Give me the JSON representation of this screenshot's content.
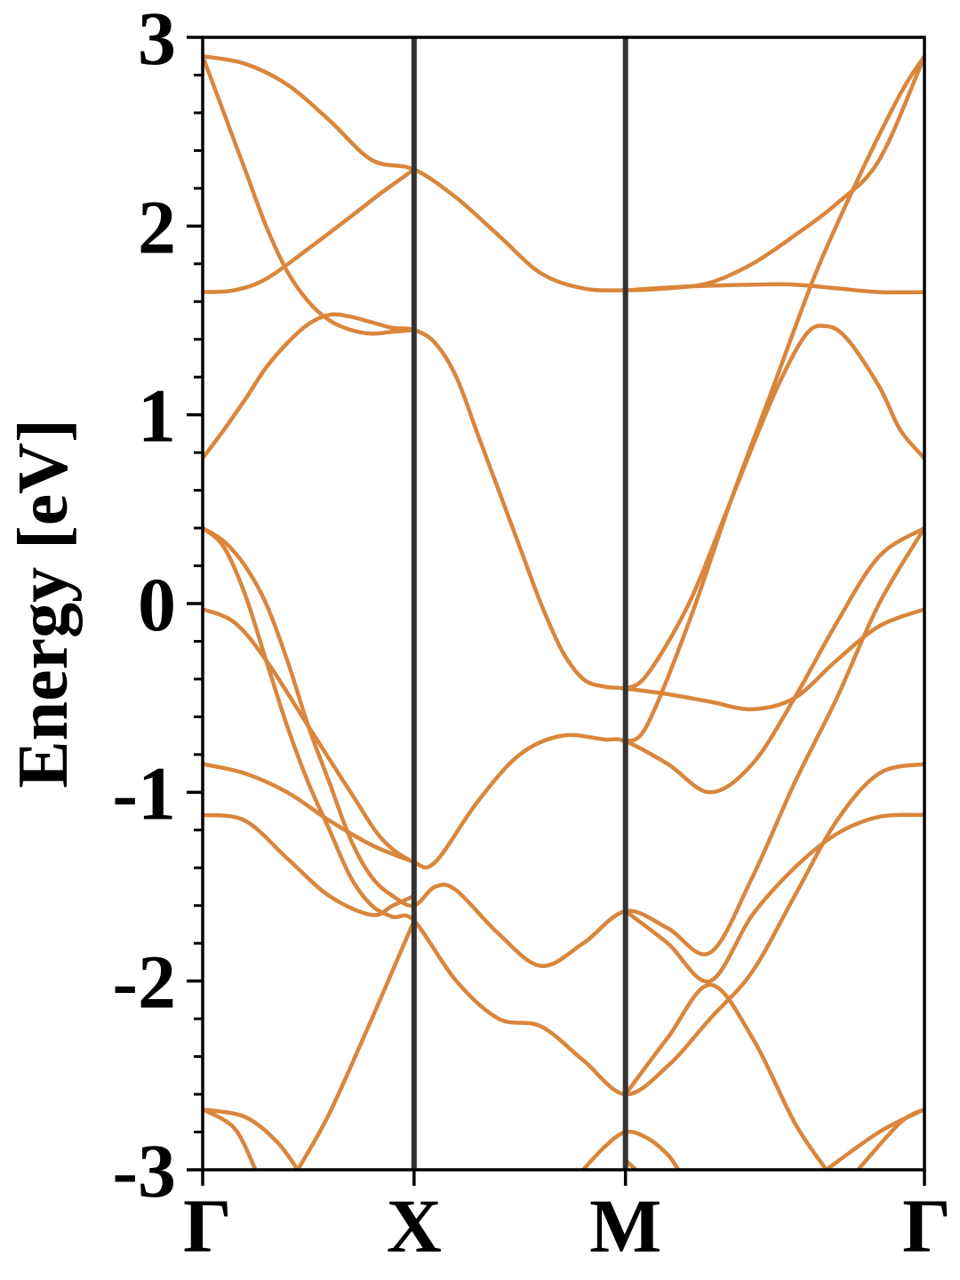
{
  "chart_data": {
    "type": "line",
    "title": "",
    "xlabel": "",
    "ylabel": "Energy [eV]",
    "ylim": [
      -3,
      3
    ],
    "xlim": [
      0,
      3.4142
    ],
    "y_ticks": [
      -3,
      -2,
      -1,
      0,
      1,
      2,
      3
    ],
    "y_tick_labels": [
      "-3",
      "-2",
      "-1",
      "0",
      "1",
      "2",
      "3"
    ],
    "y_minor_step": 0.2,
    "high_symmetry_points": [
      {
        "label": "Γ",
        "x": 0
      },
      {
        "label": "X",
        "x": 1.0
      },
      {
        "label": "M",
        "x": 2.0
      },
      {
        "label": "Γ",
        "x": 3.4142
      }
    ],
    "grid": false,
    "legend": "none",
    "colors": {
      "band": "#D9863C",
      "band_highlight": "#F07F1A",
      "symmetry_line": "#333333",
      "axis": "#000000"
    },
    "series": [
      {
        "values": [
          [
            0,
            2.9
          ],
          [
            0.2,
            2.86
          ],
          [
            0.4,
            2.75
          ],
          [
            0.6,
            2.56
          ],
          [
            0.8,
            2.35
          ],
          [
            1.0,
            2.3
          ],
          [
            1.2,
            2.15
          ],
          [
            1.4,
            1.95
          ],
          [
            1.6,
            1.75
          ],
          [
            1.8,
            1.67
          ],
          [
            2.0,
            1.66
          ],
          [
            2.2,
            1.67
          ],
          [
            2.4,
            1.7
          ],
          [
            2.6,
            1.8
          ],
          [
            2.8,
            1.95
          ],
          [
            3.0,
            2.12
          ],
          [
            3.2,
            2.35
          ],
          [
            3.4142,
            2.9
          ]
        ]
      },
      {
        "values": [
          [
            0,
            1.65
          ],
          [
            0.15,
            1.66
          ],
          [
            0.3,
            1.72
          ],
          [
            0.5,
            1.88
          ],
          [
            0.7,
            2.05
          ],
          [
            0.85,
            2.18
          ],
          [
            1.0,
            2.3
          ]
        ]
      },
      {
        "values": [
          [
            2.0,
            1.66
          ],
          [
            2.3,
            1.68
          ],
          [
            2.6,
            1.69
          ],
          [
            2.8,
            1.69
          ],
          [
            3.0,
            1.67
          ],
          [
            3.2,
            1.65
          ],
          [
            3.4142,
            1.65
          ]
        ]
      },
      {
        "values": [
          [
            0,
            2.9
          ],
          [
            0.1,
            2.6
          ],
          [
            0.2,
            2.3
          ],
          [
            0.3,
            2.0
          ],
          [
            0.4,
            1.76
          ],
          [
            0.5,
            1.6
          ],
          [
            0.6,
            1.5
          ],
          [
            0.7,
            1.45
          ],
          [
            0.8,
            1.43
          ],
          [
            0.9,
            1.44
          ],
          [
            1.0,
            1.45
          ]
        ]
      },
      {
        "values": [
          [
            0,
            0.77
          ],
          [
            0.1,
            0.92
          ],
          [
            0.2,
            1.08
          ],
          [
            0.3,
            1.25
          ],
          [
            0.4,
            1.38
          ],
          [
            0.5,
            1.48
          ],
          [
            0.6,
            1.53
          ],
          [
            0.7,
            1.52
          ],
          [
            0.8,
            1.49
          ],
          [
            0.9,
            1.46
          ],
          [
            1.0,
            1.45
          ],
          [
            1.1,
            1.38
          ],
          [
            1.2,
            1.2
          ],
          [
            1.3,
            0.9
          ],
          [
            1.4,
            0.6
          ],
          [
            1.5,
            0.3
          ],
          [
            1.6,
            0.0
          ],
          [
            1.7,
            -0.25
          ],
          [
            1.8,
            -0.4
          ],
          [
            1.9,
            -0.44
          ],
          [
            2.0,
            -0.45
          ],
          [
            2.2,
            -0.48
          ],
          [
            2.4,
            -0.52
          ],
          [
            2.6,
            -0.56
          ],
          [
            2.8,
            -0.5
          ],
          [
            3.0,
            -0.3
          ],
          [
            3.2,
            -0.12
          ],
          [
            3.4142,
            -0.03
          ]
        ]
      },
      {
        "values": [
          [
            2.0,
            -0.45
          ],
          [
            2.1,
            -0.38
          ],
          [
            2.3,
            0.0
          ],
          [
            2.5,
            0.55
          ],
          [
            2.7,
            1.1
          ],
          [
            2.85,
            1.42
          ],
          [
            2.95,
            1.47
          ],
          [
            3.05,
            1.4
          ],
          [
            3.2,
            1.15
          ],
          [
            3.3,
            0.92
          ],
          [
            3.4142,
            0.77
          ]
        ]
      },
      {
        "values": [
          [
            2.0,
            -0.73
          ],
          [
            2.1,
            -0.65
          ],
          [
            2.3,
            -0.1
          ],
          [
            2.5,
            0.55
          ],
          [
            2.7,
            1.15
          ],
          [
            2.9,
            1.75
          ],
          [
            3.1,
            2.25
          ],
          [
            3.3,
            2.7
          ],
          [
            3.4142,
            2.9
          ]
        ]
      },
      {
        "values": [
          [
            0,
            0.4
          ],
          [
            0.1,
            0.3
          ],
          [
            0.2,
            0.05
          ],
          [
            0.3,
            -0.3
          ],
          [
            0.4,
            -0.65
          ],
          [
            0.5,
            -0.95
          ],
          [
            0.6,
            -1.2
          ],
          [
            0.7,
            -1.45
          ],
          [
            0.8,
            -1.6
          ],
          [
            0.9,
            -1.66
          ],
          [
            1.0,
            -1.68
          ],
          [
            1.2,
            -2.0
          ],
          [
            1.4,
            -2.2
          ],
          [
            1.6,
            -2.24
          ],
          [
            1.8,
            -2.42
          ],
          [
            2.0,
            -2.6
          ],
          [
            2.2,
            -2.45
          ],
          [
            2.4,
            -2.2
          ],
          [
            2.6,
            -1.95
          ],
          [
            2.8,
            -1.55
          ],
          [
            3.0,
            -1.15
          ],
          [
            3.2,
            -0.9
          ],
          [
            3.4142,
            -0.85
          ]
        ]
      },
      {
        "values": [
          [
            0,
            0.4
          ],
          [
            0.1,
            0.33
          ],
          [
            0.2,
            0.2
          ],
          [
            0.3,
            0.0
          ],
          [
            0.4,
            -0.3
          ],
          [
            0.5,
            -0.65
          ],
          [
            0.6,
            -0.95
          ],
          [
            0.7,
            -1.25
          ],
          [
            0.8,
            -1.45
          ],
          [
            0.9,
            -1.55
          ],
          [
            1.0,
            -1.6
          ],
          [
            1.1,
            -1.5
          ],
          [
            1.2,
            -1.52
          ],
          [
            1.4,
            -1.75
          ],
          [
            1.6,
            -1.92
          ],
          [
            1.8,
            -1.8
          ],
          [
            2.0,
            -1.63
          ],
          [
            2.2,
            -1.72
          ],
          [
            2.4,
            -1.85
          ],
          [
            2.6,
            -1.45
          ],
          [
            2.8,
            -0.95
          ],
          [
            3.0,
            -0.5
          ],
          [
            3.2,
            0.0
          ],
          [
            3.4142,
            0.4
          ]
        ]
      },
      {
        "values": [
          [
            0,
            -0.03
          ],
          [
            0.15,
            -0.1
          ],
          [
            0.3,
            -0.3
          ],
          [
            0.5,
            -0.65
          ],
          [
            0.7,
            -1.0
          ],
          [
            0.85,
            -1.25
          ],
          [
            1.0,
            -1.37
          ],
          [
            1.1,
            -1.37
          ],
          [
            1.3,
            -1.05
          ],
          [
            1.5,
            -0.8
          ],
          [
            1.7,
            -0.7
          ],
          [
            1.9,
            -0.72
          ],
          [
            2.0,
            -0.73
          ],
          [
            2.2,
            -0.85
          ],
          [
            2.4,
            -1.0
          ],
          [
            2.6,
            -0.85
          ],
          [
            2.8,
            -0.5
          ],
          [
            3.0,
            -0.1
          ],
          [
            3.2,
            0.25
          ],
          [
            3.4142,
            0.4
          ]
        ]
      },
      {
        "values": [
          [
            0,
            -0.85
          ],
          [
            0.2,
            -0.9
          ],
          [
            0.4,
            -1.0
          ],
          [
            0.6,
            -1.15
          ],
          [
            0.8,
            -1.28
          ],
          [
            1.0,
            -1.37
          ]
        ]
      },
      {
        "values": [
          [
            0,
            -1.12
          ],
          [
            0.2,
            -1.15
          ],
          [
            0.4,
            -1.35
          ],
          [
            0.6,
            -1.55
          ],
          [
            0.8,
            -1.65
          ],
          [
            0.9,
            -1.6
          ],
          [
            1.0,
            -1.55
          ]
        ]
      },
      {
        "values": [
          [
            2.0,
            -1.63
          ],
          [
            2.2,
            -1.8
          ],
          [
            2.4,
            -2.0
          ],
          [
            2.6,
            -1.65
          ],
          [
            2.8,
            -1.4
          ],
          [
            3.0,
            -1.22
          ],
          [
            3.2,
            -1.13
          ],
          [
            3.4142,
            -1.12
          ]
        ]
      },
      {
        "values": [
          [
            0.45,
            -3.0
          ],
          [
            0.6,
            -2.7
          ],
          [
            0.8,
            -2.2
          ],
          [
            1.0,
            -1.68
          ]
        ]
      },
      {
        "values": [
          [
            2.0,
            -2.6
          ],
          [
            2.2,
            -2.3
          ],
          [
            2.4,
            -2.02
          ],
          [
            2.6,
            -2.3
          ],
          [
            2.8,
            -2.75
          ],
          [
            2.95,
            -3.0
          ]
        ]
      },
      {
        "values": [
          [
            0,
            -2.68
          ],
          [
            0.2,
            -2.72
          ],
          [
            0.35,
            -2.85
          ],
          [
            0.45,
            -3.0
          ]
        ]
      },
      {
        "values": [
          [
            0,
            -2.68
          ],
          [
            0.15,
            -2.78
          ],
          [
            0.25,
            -3.0
          ]
        ]
      },
      {
        "values": [
          [
            1.8,
            -3.0
          ],
          [
            1.9,
            -2.88
          ],
          [
            2.0,
            -2.8
          ],
          [
            2.1,
            -2.83
          ],
          [
            2.2,
            -2.92
          ],
          [
            2.25,
            -3.0
          ]
        ]
      },
      {
        "values": [
          [
            2.05,
            -3.0
          ],
          [
            2.0,
            -2.95
          ]
        ]
      },
      {
        "values": [
          [
            2.95,
            -3.0
          ],
          [
            3.2,
            -2.8
          ],
          [
            3.4142,
            -2.68
          ]
        ]
      },
      {
        "values": [
          [
            3.1,
            -3.0
          ],
          [
            3.3,
            -2.75
          ],
          [
            3.4142,
            -2.68
          ]
        ]
      }
    ]
  }
}
